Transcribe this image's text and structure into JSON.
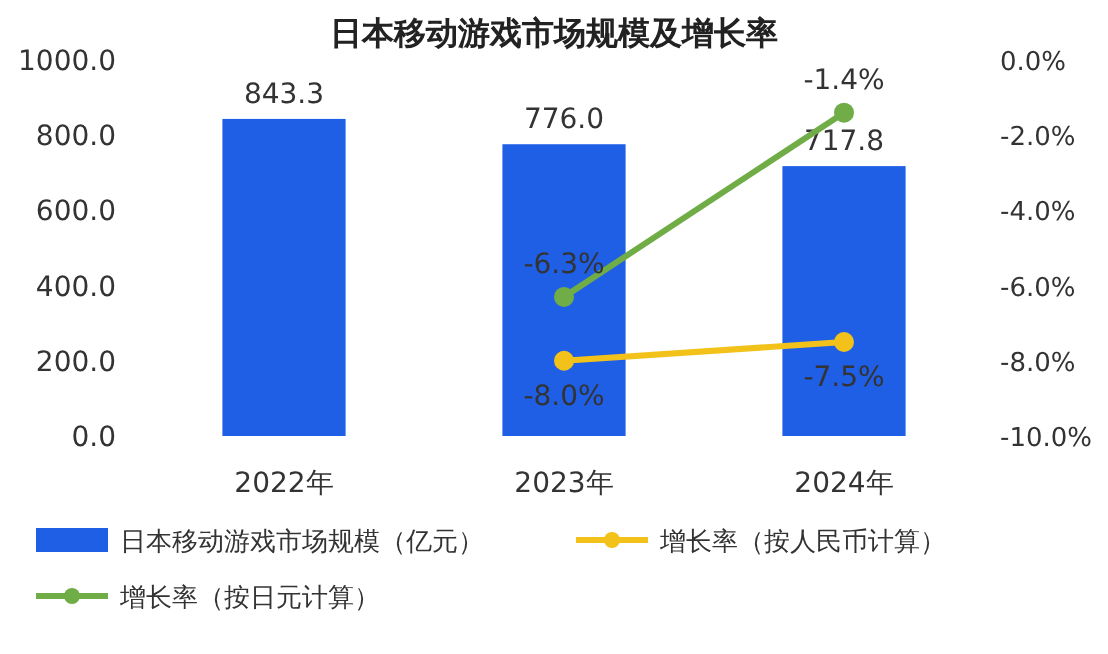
{
  "chart_data": {
    "type": "bar",
    "title": "日本移动游戏市场规模及增长率",
    "categories": [
      "2022年",
      "2023年",
      "2024年"
    ],
    "series": [
      {
        "name": "日本移动游戏市场规模（亿元）",
        "color": "#1f5fe6",
        "values": [
          843.3,
          776.0,
          717.8
        ],
        "value_labels": [
          "843.3",
          "776.0",
          "717.8"
        ]
      },
      {
        "name": "增长率（按人民币计算）",
        "type": "line",
        "axis": "y2",
        "color": "#f2c21b",
        "values": [
          null,
          -8.0,
          -7.5
        ],
        "value_labels": [
          null,
          "-8.0%",
          "-7.5%"
        ]
      },
      {
        "name": "增长率（按日元计算）",
        "type": "line",
        "axis": "y2",
        "color": "#70ad47",
        "values": [
          null,
          -6.3,
          -1.4
        ],
        "value_labels": [
          null,
          "-6.3%",
          "-1.4%"
        ]
      }
    ],
    "ylim": [
      0,
      1000
    ],
    "yticks": [
      {
        "value": 0,
        "label": "0.0"
      },
      {
        "value": 200,
        "label": "200.0"
      },
      {
        "value": 400,
        "label": "400.0"
      },
      {
        "value": 600,
        "label": "600.0"
      },
      {
        "value": 800,
        "label": "800.0"
      },
      {
        "value": 1000,
        "label": "1000.0"
      }
    ],
    "y2lim": [
      -10,
      0
    ],
    "y2ticks": [
      {
        "value": -10,
        "label": "-10.0%"
      },
      {
        "value": -8,
        "label": "-8.0%"
      },
      {
        "value": -6,
        "label": "-6.0%"
      },
      {
        "value": -4,
        "label": "-4.0%"
      },
      {
        "value": -2,
        "label": "-2.0%"
      },
      {
        "value": 0,
        "label": "0.0%"
      }
    ],
    "marker": "circle",
    "line_style": "solid",
    "legend": "bottom",
    "grid": false
  }
}
